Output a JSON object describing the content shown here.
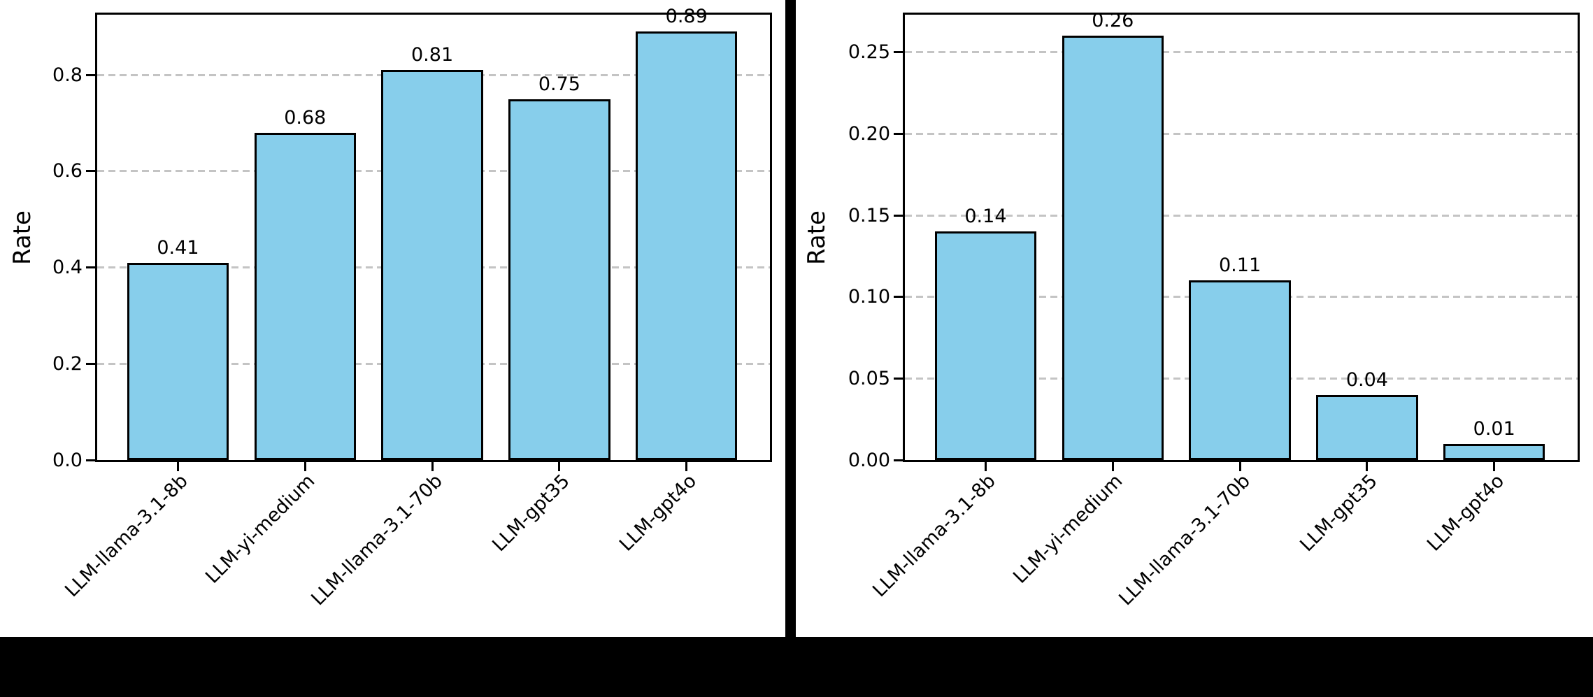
{
  "figure": {
    "background": "#000000",
    "panel_background": "#ffffff",
    "divider_color": "#000000",
    "text_color": "#000000"
  },
  "chart_data": [
    {
      "type": "bar",
      "panel": "left",
      "ylabel": "Rate",
      "xlabel": "",
      "categories": [
        "LLM-llama-3.1-8b",
        "LLM-yi-medium",
        "LLM-llama-3.1-70b",
        "LLM-gpt35",
        "LLM-gpt4o"
      ],
      "values": [
        0.41,
        0.68,
        0.81,
        0.75,
        0.89
      ],
      "bar_labels": [
        "0.41",
        "0.68",
        "0.81",
        "0.75",
        "0.89"
      ],
      "yticks": [
        0.0,
        0.2,
        0.4,
        0.6,
        0.8
      ],
      "ytick_labels": [
        "0.0",
        "0.2",
        "0.4",
        "0.6",
        "0.8"
      ],
      "ylim": [
        0,
        0.925
      ],
      "grid": true,
      "grid_axis": "y",
      "grid_style": "dashed",
      "legend": "none",
      "bar_color": "#87CEEB",
      "bar_edge_color": "#000000",
      "grid_color": "#c4c4c4"
    },
    {
      "type": "bar",
      "panel": "right",
      "ylabel": "Rate",
      "xlabel": "",
      "categories": [
        "LLM-llama-3.1-8b",
        "LLM-yi-medium",
        "LLM-llama-3.1-70b",
        "LLM-gpt35",
        "LLM-gpt4o"
      ],
      "values": [
        0.14,
        0.26,
        0.11,
        0.04,
        0.01
      ],
      "bar_labels": [
        "0.14",
        "0.26",
        "0.11",
        "0.04",
        "0.01"
      ],
      "yticks": [
        0.0,
        0.05,
        0.1,
        0.15,
        0.2,
        0.25
      ],
      "ytick_labels": [
        "0.00",
        "0.05",
        "0.10",
        "0.15",
        "0.20",
        "0.25"
      ],
      "ylim": [
        0,
        0.273
      ],
      "grid": true,
      "grid_axis": "y",
      "grid_style": "dashed",
      "legend": "none",
      "bar_color": "#87CEEB",
      "bar_edge_color": "#000000",
      "grid_color": "#c4c4c4"
    }
  ]
}
